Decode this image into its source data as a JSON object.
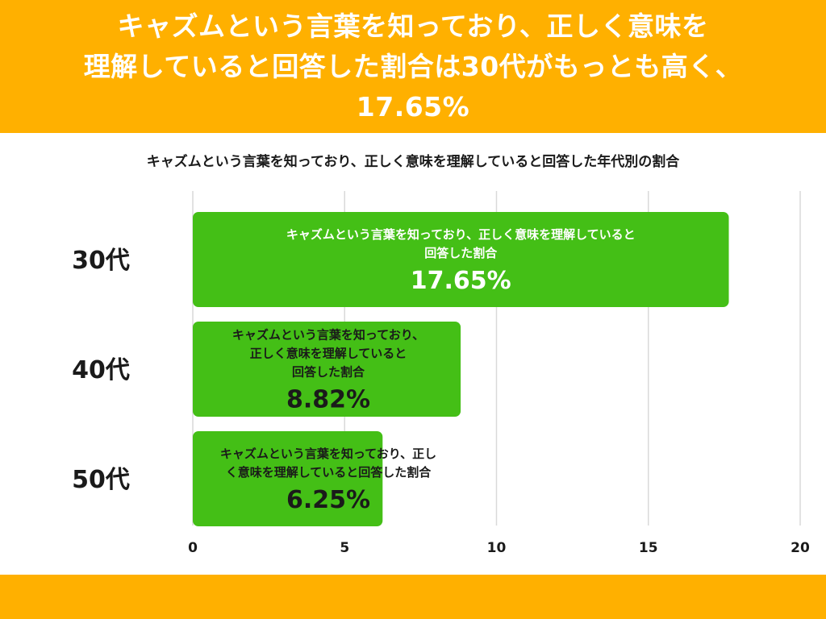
{
  "headline": {
    "lines": [
      "キャズムという言葉を知っており、正しく意味を",
      "理解していると回答した割合は30代がもっとも高く、",
      "17.65%"
    ]
  },
  "colors": {
    "accent_band": "#FFB000",
    "bar": "#44BF16",
    "bar_text_inside": "#ffffff",
    "bar_text_overflow": "#1a1a1a",
    "grid": "#d9d9d9",
    "header_text": "#ffffff"
  },
  "chart_data": {
    "type": "bar",
    "orientation": "horizontal",
    "title": "キャズムという言葉を知っており、正しく意味を理解していると回答した年代別の割合",
    "categories": [
      "30代",
      "40代",
      "50代"
    ],
    "values": [
      17.65,
      8.82,
      6.25
    ],
    "value_labels": [
      "17.65%",
      "8.82%",
      "6.25%"
    ],
    "bar_label_lines": [
      [
        "キャズムという言葉を知っており、正しく意味を理解していると",
        "回答した割合"
      ],
      [
        "キャズムという言葉を知っており、",
        "正しく意味を理解していると",
        "回答した割合"
      ],
      [
        "キャズムという言葉を知っており、正し",
        "く意味を理解していると回答した割合"
      ]
    ],
    "xlim": [
      0,
      20
    ],
    "xticks": [
      0,
      5,
      10,
      15,
      20
    ],
    "grid": true,
    "legend": "none"
  }
}
